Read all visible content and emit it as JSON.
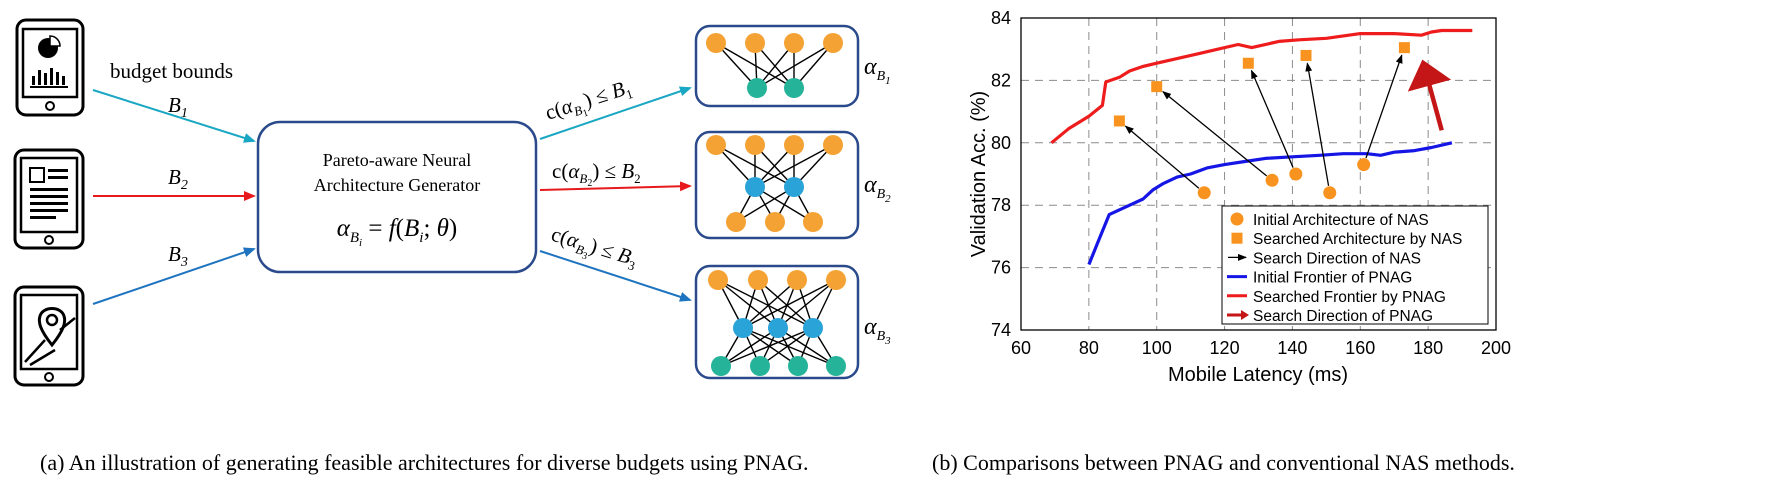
{
  "diagram": {
    "budget_label": "budget bounds",
    "budgets": [
      "B1",
      "B2",
      "B3"
    ],
    "generator_line1": "Pareto-aware Neural",
    "generator_line2": "Architecture Generator",
    "generator_formula": "α_Bi = f(B_i; θ)",
    "constraints": [
      "c(α_B1) ≤ B1",
      "c(α_B2) ≤ B2",
      "c(α_B3) ≤ B3"
    ],
    "arch_labels": [
      "α_B1",
      "α_B2",
      "α_B3"
    ],
    "colors": {
      "B1": "#1aa7c4",
      "B2": "#e8191c",
      "B3": "#1f74c0",
      "box": "#2b4a8c",
      "orange": "#f4a233",
      "blue": "#2aa3d8",
      "teal": "#25b39a"
    },
    "icons": [
      "phone-chart-icon",
      "tablet-document-icon",
      "tablet-map-icon"
    ]
  },
  "chart_data": {
    "type": "line+scatter",
    "xlabel": "Mobile Latency (ms)",
    "ylabel": "Validation Acc. (%)",
    "xlim": [
      60,
      200
    ],
    "ylim": [
      74,
      84
    ],
    "xticks": [
      60,
      80,
      100,
      120,
      140,
      160,
      180,
      200
    ],
    "yticks": [
      74,
      76,
      78,
      80,
      82,
      84
    ],
    "grid": true,
    "legend_position": "bottom-right",
    "series": [
      {
        "name": "Initial Architecture of NAS",
        "kind": "scatter-circle",
        "color": "#f7931e",
        "x": [
          114,
          134,
          141,
          151,
          161
        ],
        "y": [
          78.4,
          78.8,
          79.0,
          78.4,
          79.3
        ]
      },
      {
        "name": "Searched Architecture by NAS",
        "kind": "scatter-square",
        "color": "#f7931e",
        "x": [
          89,
          100,
          127,
          144,
          173
        ],
        "y": [
          80.7,
          81.8,
          82.55,
          82.8,
          83.05
        ]
      },
      {
        "name": "Search Direction of NAS",
        "kind": "arrows",
        "color": "#000000",
        "from": [
          [
            114,
            78.4
          ],
          [
            134,
            78.8
          ],
          [
            141,
            79.0
          ],
          [
            151,
            78.4
          ],
          [
            161,
            79.3
          ]
        ],
        "to": [
          [
            89,
            80.7
          ],
          [
            100,
            81.8
          ],
          [
            127,
            82.55
          ],
          [
            144,
            82.8
          ],
          [
            173,
            83.05
          ]
        ]
      },
      {
        "name": "Initial Frontier of PNAG",
        "kind": "line",
        "color": "#1515e6",
        "x": [
          80,
          83,
          86,
          88,
          92,
          96,
          99,
          102,
          106,
          110,
          115,
          120,
          126,
          132,
          140,
          148,
          155,
          162,
          166,
          170,
          176,
          181,
          187
        ],
        "y": [
          76.1,
          76.9,
          77.7,
          77.8,
          78.0,
          78.2,
          78.5,
          78.7,
          78.9,
          79.0,
          79.2,
          79.3,
          79.4,
          79.5,
          79.55,
          79.6,
          79.65,
          79.65,
          79.6,
          79.7,
          79.75,
          79.85,
          80.0
        ]
      },
      {
        "name": "Searched Frontier by PNAG",
        "kind": "line",
        "color": "#ee1c1c",
        "x": [
          69,
          74,
          80,
          84,
          85,
          89,
          92,
          96,
          100,
          106,
          112,
          118,
          124,
          128,
          130,
          136,
          142,
          150,
          160,
          170,
          178,
          181,
          184,
          188,
          193
        ],
        "y": [
          80.0,
          80.45,
          80.85,
          81.2,
          81.95,
          82.1,
          82.3,
          82.45,
          82.55,
          82.7,
          82.85,
          83.0,
          83.15,
          83.05,
          83.1,
          83.25,
          83.3,
          83.35,
          83.5,
          83.5,
          83.45,
          83.55,
          83.6,
          83.6,
          83.6
        ]
      },
      {
        "name": "Search Direction of PNAG",
        "kind": "arrow-bold",
        "color": "#c41616",
        "from": [
          [
            184,
            80.4
          ]
        ],
        "to": [
          [
            179,
            82.9
          ]
        ]
      }
    ]
  },
  "captions": {
    "a": "(a)  An illustration of generating feasible architectures for diverse budgets using PNAG.",
    "b": "(b)  Comparisons between PNAG and conventional NAS methods."
  }
}
